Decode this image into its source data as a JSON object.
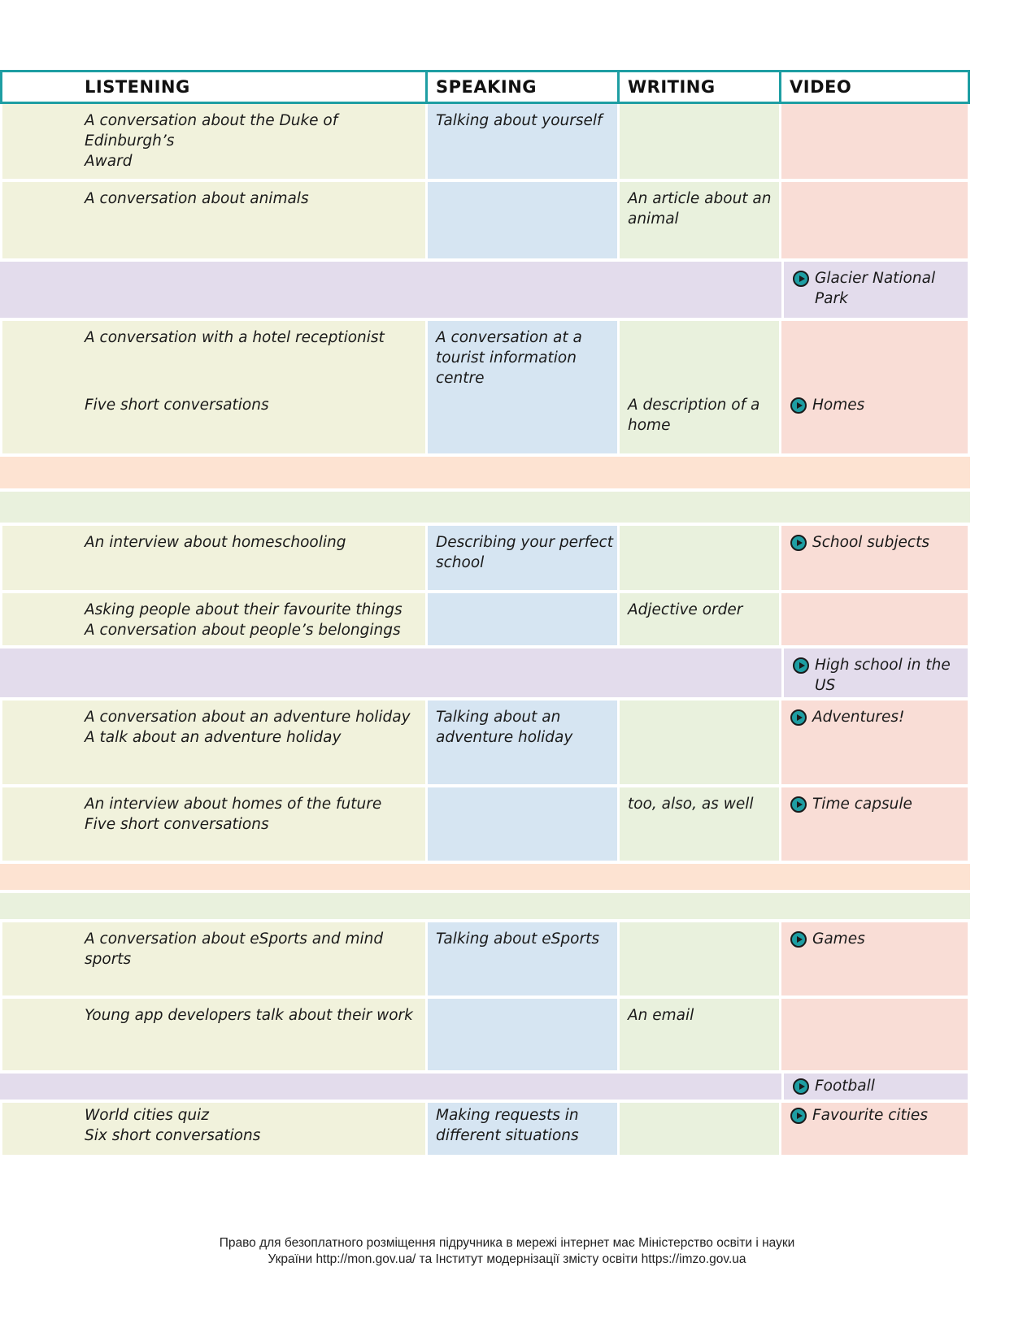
{
  "header": {
    "listening": "LISTENING",
    "speaking": "SPEAKING",
    "writing": "WRITING",
    "video": "VIDEO"
  },
  "rows": {
    "r1": {
      "listening": [
        "A conversation about the Duke of Edinburgh’s",
        "Award"
      ],
      "speaking": [
        "Talking about yourself"
      ]
    },
    "r2": {
      "listening": [
        "A conversation about animals"
      ],
      "writing": [
        "An article about an",
        "animal"
      ]
    },
    "b1": {
      "video": [
        "Glacier National",
        "Park"
      ]
    },
    "r3": {
      "listening": [
        "A conversation with a hotel receptionist"
      ],
      "speaking": [
        "A conversation at a",
        "tourist information",
        "centre"
      ]
    },
    "r4": {
      "listening": [
        "Five short conversations"
      ],
      "writing": [
        "A description of a",
        "home"
      ],
      "video": "Homes"
    },
    "r5": {
      "listening": [
        "An interview about homeschooling"
      ],
      "speaking": [
        "Describing your perfect",
        "school"
      ],
      "video": "School subjects"
    },
    "r6": {
      "listening": [
        "Asking people about their favourite things",
        "A conversation about people’s belongings"
      ],
      "writing": [
        "Adjective order"
      ]
    },
    "b2": {
      "video": [
        "High school in the",
        "US"
      ]
    },
    "r7": {
      "listening": [
        "A conversation about an adventure holiday",
        "A talk about an adventure holiday"
      ],
      "speaking": [
        "Talking about an",
        "adventure holiday"
      ],
      "video": "Adventures!"
    },
    "r8": {
      "listening": [
        "An interview about homes of the future",
        "Five short conversations"
      ],
      "writing": [
        "too, also, as well"
      ],
      "video": "Time capsule"
    },
    "r9": {
      "listening": [
        "A conversation about eSports and mind sports"
      ],
      "speaking": [
        "Talking about eSports"
      ],
      "video": "Games"
    },
    "r10": {
      "listening": [
        "Young app developers talk about their work"
      ],
      "writing": [
        "An email"
      ]
    },
    "b3": {
      "video": "Football"
    },
    "r11": {
      "listening": [
        "World cities quiz",
        "Six short conversations"
      ],
      "speaking": [
        "Making requests in",
        "different situations"
      ],
      "video": "Favourite cities"
    }
  },
  "icons": {
    "video_icon": "play-circle-icon"
  },
  "colors": {
    "header_border": "#1e9ea3",
    "listening_bg": "#f1f2dc",
    "speaking_bg": "#d6e5f2",
    "writing_bg": "#e9f1dd",
    "video_bg": "#f9ddd6",
    "band_purple": "#e3dcec",
    "band_peach": "#fde3d2",
    "band_green": "#e9f1dd"
  },
  "footer": {
    "line1": "Право для безоплатного розміщення підручника в мережі інтернет має Міністерство освіти і науки",
    "line2": "України http://mon.gov.ua/ та Інститут модернізації змісту освіти https://imzo.gov.ua"
  }
}
